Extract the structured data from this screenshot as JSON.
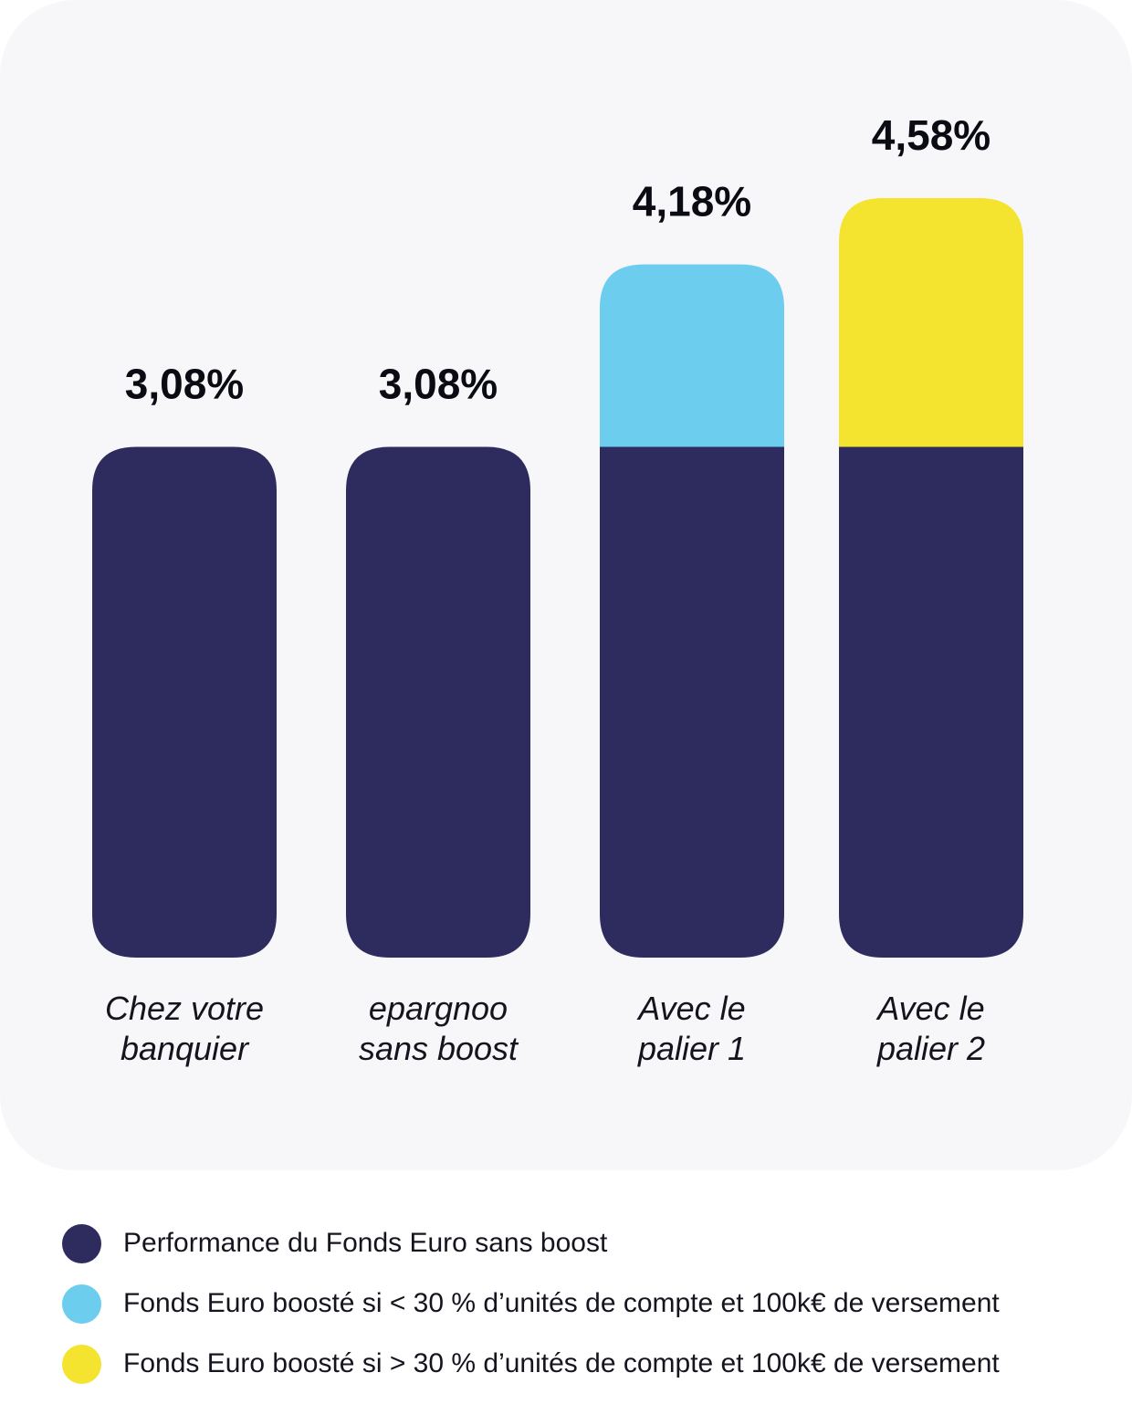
{
  "chart_data": {
    "type": "bar",
    "stacked": true,
    "categories": [
      [
        "Chez votre",
        "banquier"
      ],
      [
        "epargnoo",
        "sans boost"
      ],
      [
        "Avec le",
        "palier 1"
      ],
      [
        "Avec le",
        "palier 2"
      ]
    ],
    "value_labels": [
      "3,08%",
      "3,08%",
      "4,18%",
      "4,58%"
    ],
    "totals": [
      3.08,
      3.08,
      4.18,
      4.58
    ],
    "series": [
      {
        "name": "Performance du Fonds Euro sans boost",
        "color": "#2e2c5e",
        "values": [
          3.08,
          3.08,
          3.08,
          3.08
        ]
      },
      {
        "name": "Fonds Euro boosté si < 30 % d’unités de compte et 100k€ de versement",
        "color": "#6ccdee",
        "values": [
          0,
          0,
          1.1,
          0
        ]
      },
      {
        "name": "Fonds Euro boosté si > 30 % d’unités de compte et 100k€ de versement",
        "color": "#f4e430",
        "values": [
          0,
          0,
          0,
          1.5
        ]
      }
    ],
    "ylim": [
      0,
      4.58
    ],
    "grid": false,
    "legend_position": "bottom"
  }
}
